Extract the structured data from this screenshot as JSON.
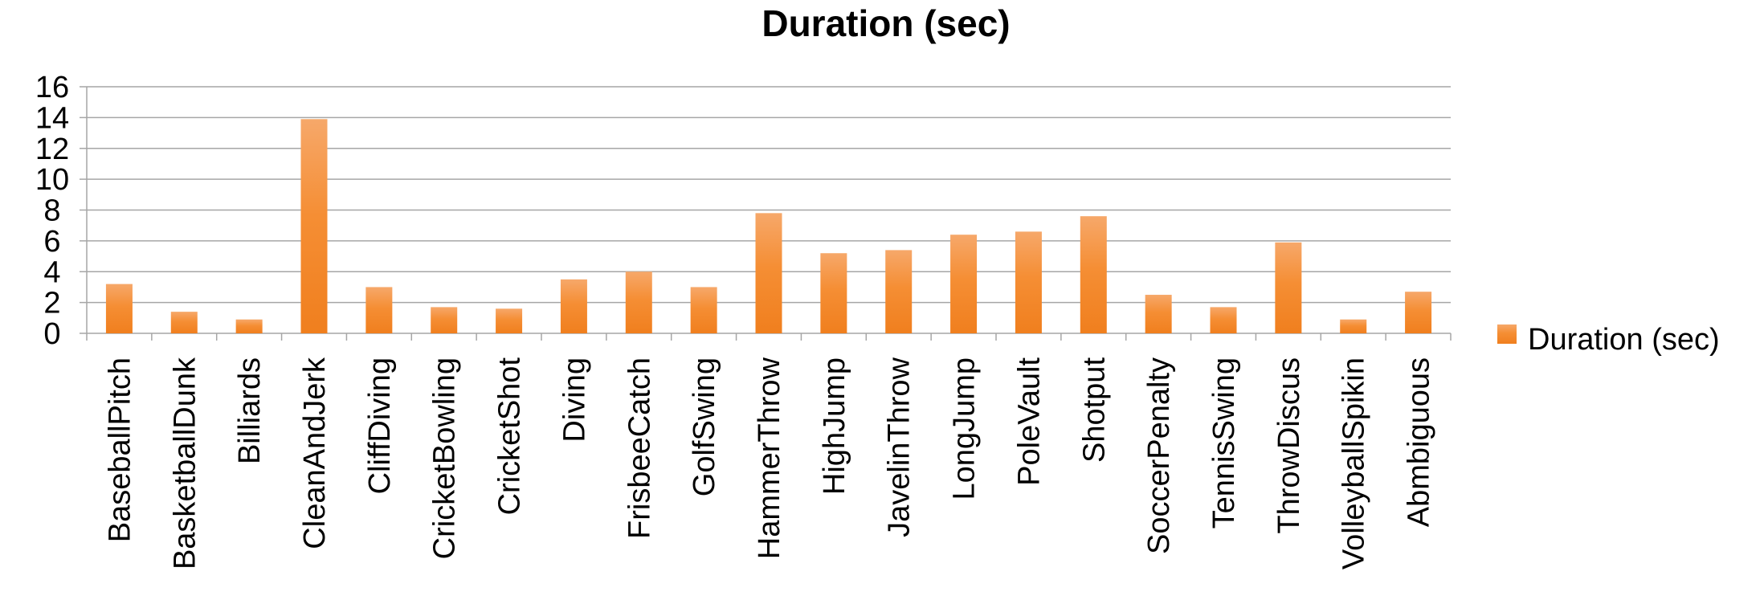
{
  "chart_data": {
    "type": "bar",
    "title": "Duration (sec)",
    "xlabel": "",
    "ylabel": "",
    "ylim": [
      0,
      16
    ],
    "yticks": [
      0,
      2,
      4,
      6,
      8,
      10,
      12,
      14,
      16
    ],
    "grid": true,
    "legend_position": "right",
    "categories": [
      "BaseballPitch",
      "BasketballDunk",
      "Billiards",
      "CleanAndJerk",
      "CliffDiving",
      "CricketBowling",
      "CricketShot",
      "Diving",
      "FrisbeeCatch",
      "GolfSwing",
      "HammerThrow",
      "HighJump",
      "JavelinThrow",
      "LongJump",
      "PoleVault",
      "Shotput",
      "SoccerPenalty",
      "TennisSwing",
      "ThrowDiscus",
      "VolleyballSpikin",
      "Abmbiguous"
    ],
    "series": [
      {
        "name": "Duration (sec)",
        "color": "#F58A2C",
        "values": [
          3.2,
          1.4,
          0.9,
          13.9,
          3.0,
          1.7,
          1.6,
          3.5,
          4.0,
          3.0,
          7.8,
          5.2,
          5.4,
          6.4,
          6.6,
          7.6,
          2.5,
          1.7,
          5.9,
          0.9,
          2.7
        ]
      }
    ]
  }
}
